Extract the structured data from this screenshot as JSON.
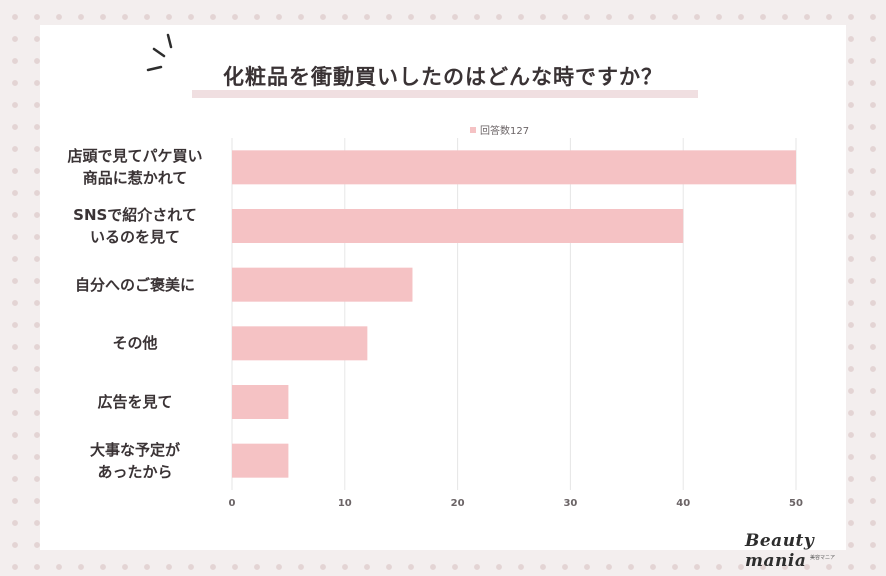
{
  "chart_data": {
    "type": "bar",
    "orientation": "horizontal",
    "title": "化粧品を衝動買いしたのはどんな時ですか？",
    "legend": "回答数127",
    "categories": [
      "店頭で見てパケ買い\n商品に惹かれて",
      "SNSで紹介されて\nいるのを見て",
      "自分へのご褒美に",
      "その他",
      "広告を見て",
      "大事な予定が\nあったから"
    ],
    "values": [
      50,
      40,
      16,
      12,
      5,
      5
    ],
    "xlim": [
      0,
      50
    ],
    "xticks": [
      "0",
      "10",
      "20",
      "30",
      "40",
      "50"
    ],
    "grid": true,
    "bar_color": "#f5c2c4"
  },
  "brand": {
    "name": "Beauty mania",
    "sub": "美容マニア"
  }
}
